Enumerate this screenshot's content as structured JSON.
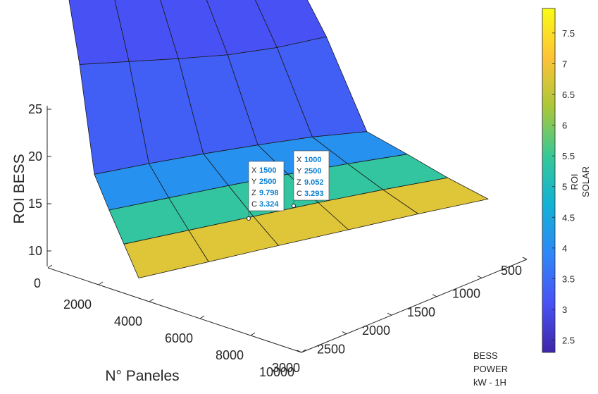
{
  "chart_data": {
    "type": "surface",
    "x": [
      500,
      1000,
      1500,
      2000,
      2500,
      3000
    ],
    "y": [
      0,
      2000,
      4000,
      6000,
      8000,
      10000
    ],
    "xlabel": "BESS POWER kW - 1H",
    "xlabel_lines": [
      "BESS",
      "POWER",
      "kW - 1H"
    ],
    "ylabel": "N° Paneles",
    "zlabel": "ROI BESS",
    "clabel": "ROI SOLAR",
    "clabel_lines": [
      "ROI",
      "SOLAR"
    ],
    "x_ticks": [
      "500",
      "1000",
      "1500",
      "2000",
      "2500",
      "3000"
    ],
    "y_ticks": [
      "0",
      "2000",
      "4000",
      "6000",
      "8000",
      "10000"
    ],
    "z_ticks": [
      "10",
      "15",
      "20",
      "25"
    ],
    "c_ticks": [
      "2.5",
      "3",
      "3.5",
      "4",
      "4.5",
      "5",
      "5.5",
      "6",
      "6.5",
      "7",
      "7.5"
    ],
    "zlim": [
      8.5,
      25
    ],
    "clim": [
      2.3,
      7.9
    ],
    "colormap": "parula",
    "z": [
      [
        24.5,
        24.0,
        23.5,
        23.2,
        23.5,
        24.5
      ],
      [
        18.0,
        17.7,
        17.4,
        17.2,
        17.4,
        18.0
      ],
      [
        9.3,
        9.6,
        9.8,
        9.9,
        9.9,
        9.6
      ],
      [
        9.0,
        9.2,
        9.4,
        9.5,
        9.5,
        9.4
      ],
      [
        8.9,
        9.0,
        9.1,
        9.2,
        9.2,
        9.1
      ],
      [
        8.8,
        8.9,
        9.0,
        9.05,
        9.1,
        9.05
      ]
    ],
    "c": [
      [
        3.0,
        3.0,
        3.0,
        3.0,
        3.0,
        3.0
      ],
      [
        3.1,
        3.1,
        3.1,
        3.1,
        3.1,
        3.1
      ],
      [
        3.3,
        3.3,
        3.3,
        3.3,
        3.3,
        3.3
      ],
      [
        4.1,
        4.1,
        4.1,
        4.1,
        4.1,
        4.1
      ],
      [
        5.4,
        5.4,
        5.4,
        5.4,
        5.4,
        5.4
      ],
      [
        6.8,
        6.8,
        6.8,
        6.8,
        6.8,
        6.8
      ]
    ],
    "datatips": [
      {
        "x": 1500,
        "y": 2500,
        "z": 9.798,
        "c": 3.324
      },
      {
        "x": 1000,
        "y": 2500,
        "z": 9.052,
        "c": 3.293
      }
    ],
    "datatip_labels": {
      "x": "X",
      "y": "Y",
      "z": "Z",
      "c": "C"
    }
  }
}
